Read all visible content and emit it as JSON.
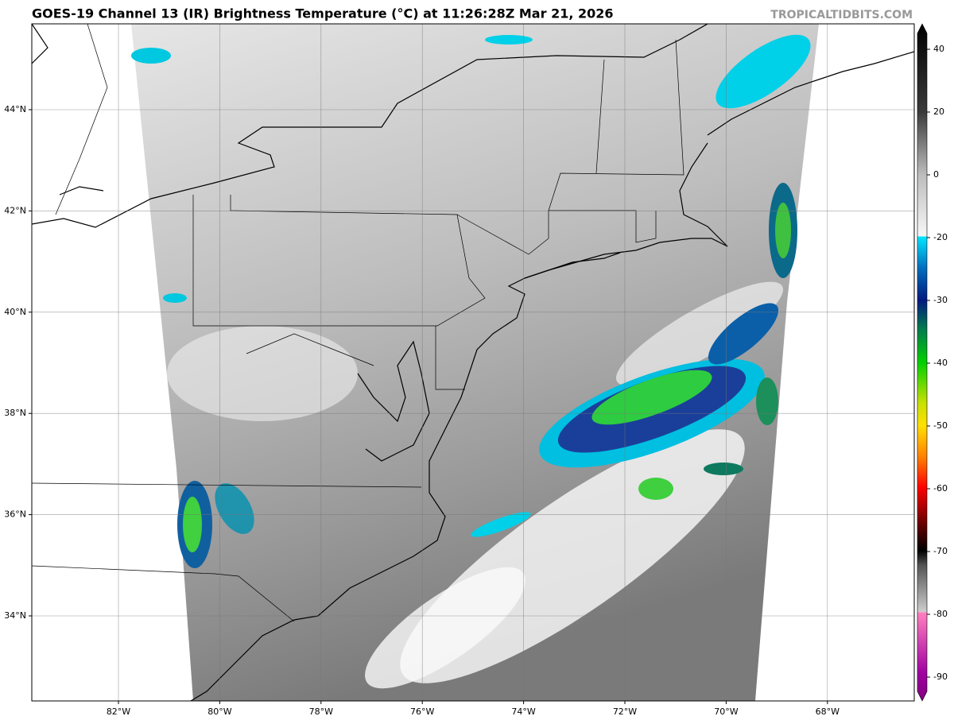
{
  "header": {
    "title": "GOES-19 Channel 13 (IR) Brightness Temperature (°C) at 11:26:28Z Mar 21, 2026",
    "watermark": "TROPICALTIDBITS.COM"
  },
  "map": {
    "lon_labels": [
      "82°W",
      "80°W",
      "78°W",
      "76°W",
      "74°W",
      "72°W",
      "70°W",
      "68°W"
    ],
    "lat_labels": [
      "44°N",
      "42°N",
      "40°N",
      "38°N",
      "36°N",
      "34°N"
    ]
  },
  "colorbar": {
    "ticks": [
      40,
      20,
      0,
      -20,
      -30,
      -40,
      -50,
      -60,
      -70,
      -80,
      -90
    ]
  }
}
